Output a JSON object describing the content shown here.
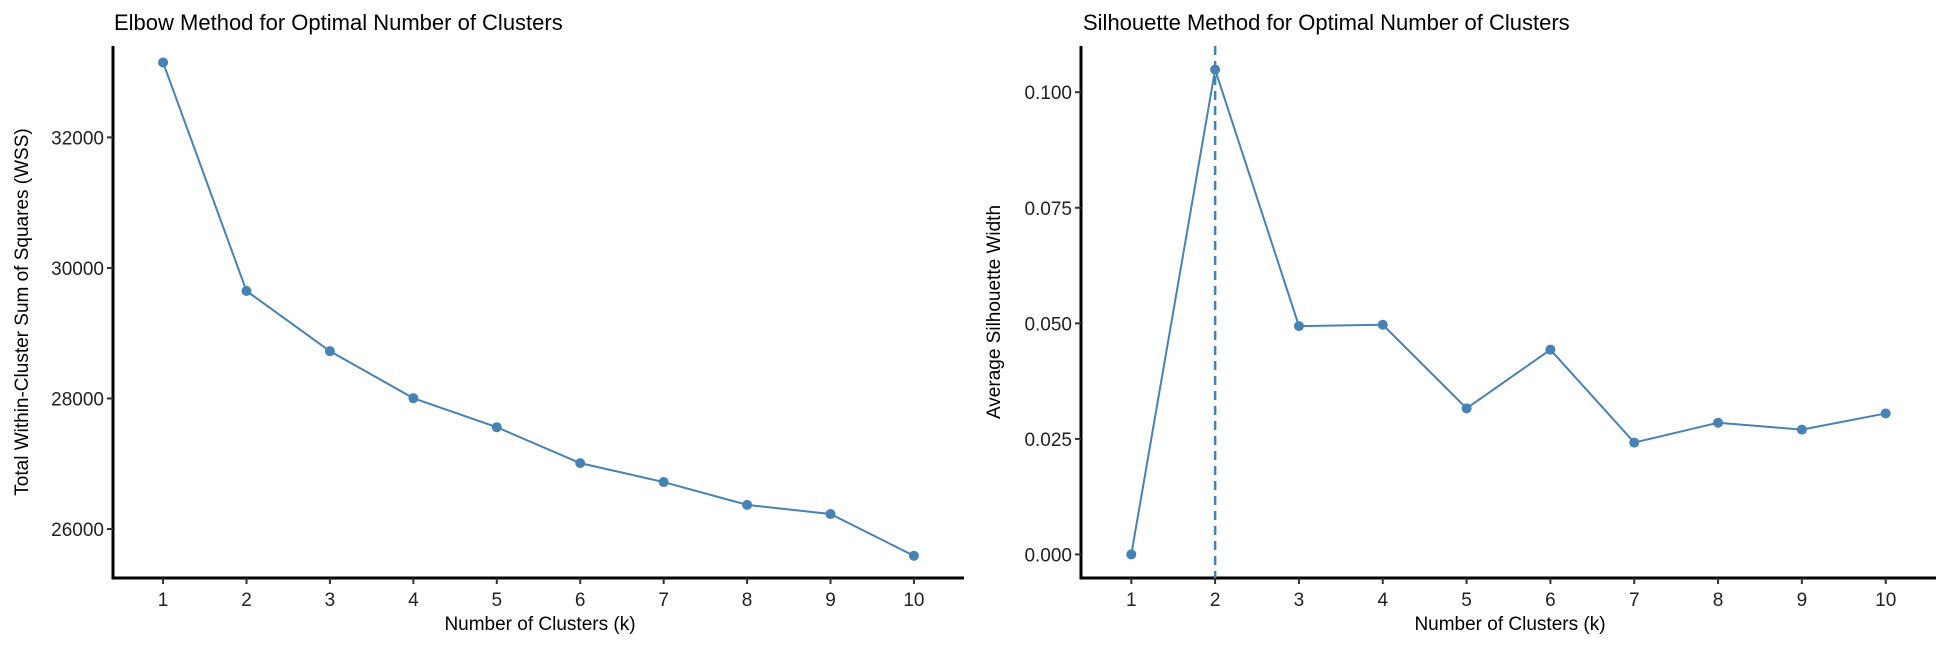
{
  "chart_data": [
    {
      "type": "line",
      "title": "Elbow Method for Optimal Number of Clusters",
      "xlabel": "Number of Clusters (k)",
      "ylabel": "Total Within-Cluster Sum of Squares (WSS)",
      "x": [
        1,
        2,
        3,
        4,
        5,
        6,
        7,
        8,
        9,
        10
      ],
      "values": [
        33148,
        29647,
        28725,
        28005,
        27560,
        27010,
        26720,
        26370,
        26230,
        25590
      ],
      "xticks": [
        "1",
        "2",
        "3",
        "4",
        "5",
        "6",
        "7",
        "8",
        "9",
        "10"
      ],
      "yticks": [
        26000,
        28000,
        30000,
        32000
      ],
      "ytick_labels": [
        "26000",
        "28000",
        "30000",
        "32000"
      ],
      "xlim": [
        0.4,
        10.6
      ],
      "ylim": [
        25250,
        33400
      ],
      "grid": false,
      "color": "#4682B4"
    },
    {
      "type": "line",
      "title": "Silhouette Method for Optimal Number of Clusters",
      "xlabel": "Number of Clusters (k)",
      "ylabel": "Average Silhouette Width",
      "x": [
        1,
        2,
        3,
        4,
        5,
        6,
        7,
        8,
        9,
        10
      ],
      "values": [
        0.0,
        0.1049,
        0.0494,
        0.0497,
        0.0316,
        0.0443,
        0.0242,
        0.0285,
        0.027,
        0.0305
      ],
      "xticks": [
        "1",
        "2",
        "3",
        "4",
        "5",
        "6",
        "7",
        "8",
        "9",
        "10"
      ],
      "yticks": [
        0,
        0.025,
        0.05,
        0.075,
        0.1
      ],
      "ytick_labels": [
        "0.000",
        "0.025",
        "0.050",
        "0.075",
        "0.100"
      ],
      "xlim": [
        0.4,
        10.6
      ],
      "ylim": [
        -0.0051,
        0.11
      ],
      "vline_x": 2,
      "grid": false,
      "color": "#4682B4"
    }
  ]
}
